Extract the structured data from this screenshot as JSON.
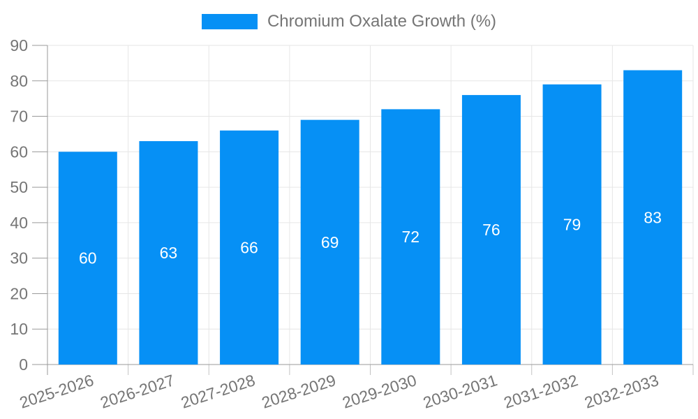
{
  "chart_data": {
    "type": "bar",
    "title": "Chromium Oxalate Growth (%)",
    "categories": [
      "2025-2026",
      "2026-2027",
      "2027-2028",
      "2028-2029",
      "2029-2030",
      "2030-2031",
      "2031-2032",
      "2032-2033"
    ],
    "values": [
      60,
      63,
      66,
      69,
      72,
      76,
      79,
      83
    ],
    "series": [
      {
        "name": "Chromium Oxalate Growth (%)",
        "values": [
          60,
          63,
          66,
          69,
          72,
          76,
          79,
          83
        ]
      }
    ],
    "xlabel": "",
    "ylabel": "",
    "ylim": [
      0,
      90
    ],
    "ytick_step": 10,
    "ytick_labels": [
      "0",
      "10",
      "20",
      "30",
      "40",
      "50",
      "60",
      "70",
      "80",
      "90"
    ],
    "grid": true,
    "legend_position": "top-center",
    "value_label_position": "inside-center",
    "xtick_label_rotation_deg": -18,
    "colors": {
      "bar": "#0690f5",
      "grid": "#e6e6e6",
      "axis": "#9a9a9a",
      "tick": "#c2c2c2",
      "tick_text": "#757575",
      "value_text": "#ffffff",
      "background": "#ffffff"
    }
  }
}
